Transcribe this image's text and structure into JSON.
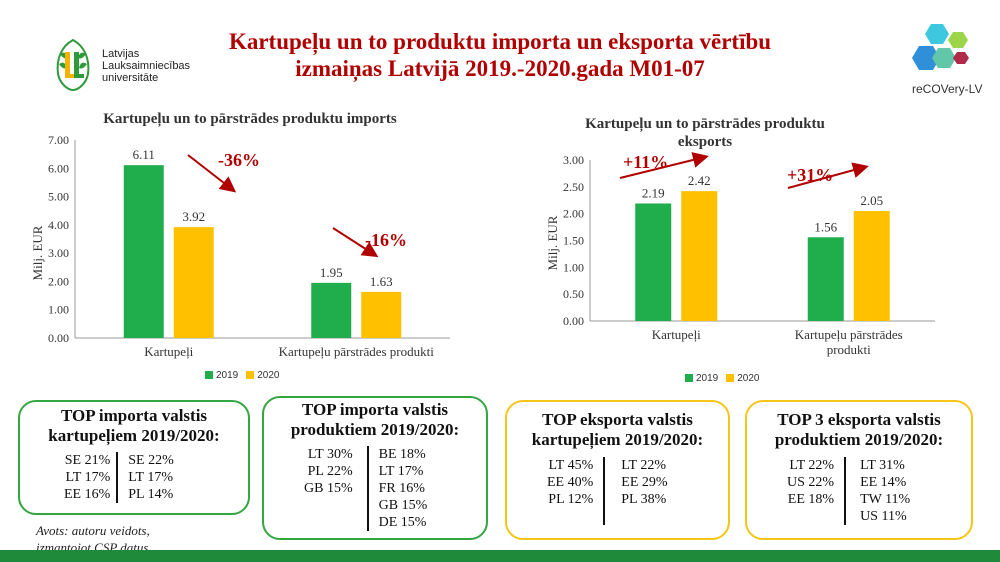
{
  "header": {
    "title_line1": "Kartupeļu un to produktu importa un eksporta vērtību",
    "title_line2": "izmaiņas Latvijā 2019.-2020.gada M01-07",
    "logo_line1": "Latvijas",
    "logo_line2": "Lauksaimniecības",
    "logo_line3": "universitāte",
    "recovery_label": "reCOVery-LV"
  },
  "colors": {
    "series_2019": "#1fae4b",
    "series_2020": "#ffc000",
    "accent_red": "#b00000",
    "box_green": "#33a642",
    "box_yellow": "#f5c518"
  },
  "chart_data": [
    {
      "type": "bar",
      "title": "Kartupeļu un to pārstrādes produktu imports",
      "ylabel": "Milj. EUR",
      "ylim": [
        0,
        7
      ],
      "yticks": [
        "0.00",
        "1.00",
        "2.00",
        "3.00",
        "4.00",
        "5.00",
        "6.00",
        "7.00"
      ],
      "categories": [
        "Kartupeļi",
        "Kartupeļu pārstrādes produkti"
      ],
      "series": [
        {
          "name": "2019",
          "values": [
            6.11,
            1.95
          ],
          "labels": [
            "6.11",
            "1.95"
          ]
        },
        {
          "name": "2020",
          "values": [
            3.92,
            1.63
          ],
          "labels": [
            "3.92",
            "1.63"
          ]
        }
      ],
      "annotations": [
        "-36%",
        "-16%"
      ],
      "legend": "bottom",
      "grid": false
    },
    {
      "type": "bar",
      "title_line1": "Kartupeļu un to pārstrādes produktu",
      "title_line2": "eksports",
      "ylabel": "Milj. EUR",
      "ylim": [
        0,
        3
      ],
      "yticks": [
        "0.00",
        "0.50",
        "1.00",
        "1.50",
        "2.00",
        "2.50",
        "3.00"
      ],
      "categories": [
        "Kartupeļi",
        "Kartupeļu pārstrādes produkti"
      ],
      "category_lines": [
        [
          "Kartupeļi"
        ],
        [
          "Kartupeļu pārstrādes",
          "produkti"
        ]
      ],
      "series": [
        {
          "name": "2019",
          "values": [
            2.19,
            1.56
          ],
          "labels": [
            "2.19",
            "1.56"
          ]
        },
        {
          "name": "2020",
          "values": [
            2.42,
            2.05
          ],
          "labels": [
            "2.42",
            "2.05"
          ]
        }
      ],
      "annotations": [
        "+11%",
        "+31%"
      ],
      "legend": "bottom",
      "grid": false
    }
  ],
  "boxes": [
    {
      "title_line1": "TOP importa valstis",
      "title_line2": "kartupeļiem 2019/2020:",
      "left": [
        "SE 21%",
        "LT 17%",
        "EE 16%"
      ],
      "right": [
        "SE 22%",
        "LT 17%",
        "PL 14%"
      ]
    },
    {
      "title_line1": "TOP importa valstis",
      "title_line2": "produktiem 2019/2020:",
      "left": [
        "LT 30%",
        "PL 22%",
        "GB 15%"
      ],
      "right": [
        "BE 18%",
        "LT 17%",
        "FR 16%",
        "GB 15%",
        "DE 15%"
      ]
    },
    {
      "title_line1": "TOP eksporta valstis",
      "title_line2": "kartupeļiem 2019/2020:",
      "left": [
        "LT 45%",
        "EE 40%",
        "PL 12%"
      ],
      "right": [
        "LT 22%",
        "EE 29%",
        "PL 38%"
      ]
    },
    {
      "title_line1": "TOP 3 eksporta valstis",
      "title_line2": "produktiem 2019/2020:",
      "left": [
        "LT 22%",
        "US 22%",
        "EE 18%"
      ],
      "right": [
        "LT 31%",
        "EE 14%",
        "TW 11%",
        "US 11%"
      ]
    }
  ],
  "source": {
    "line1": "Avots: autoru veidots,",
    "line2": "izmantojot CSP datus"
  }
}
